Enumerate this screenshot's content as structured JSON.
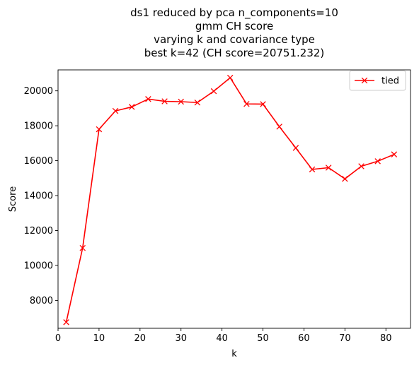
{
  "chart_data": {
    "type": "line",
    "title_lines": [
      "ds1 reduced by pca n_components=10",
      "gmm CH score",
      "varying k and covariance type",
      "best k=42 (CH score=20751.232)"
    ],
    "xlabel": "k",
    "ylabel": "Score",
    "xlim": [
      0,
      86
    ],
    "ylim": [
      6400,
      21200
    ],
    "xticks": [
      0,
      10,
      20,
      30,
      40,
      50,
      60,
      70,
      80
    ],
    "yticks": [
      8000,
      10000,
      12000,
      14000,
      16000,
      18000,
      20000
    ],
    "legend_position": "top-right",
    "series": [
      {
        "name": "tied",
        "color": "#ff0000",
        "marker": "x",
        "x": [
          2,
          6,
          10,
          14,
          18,
          22,
          26,
          30,
          34,
          38,
          42,
          46,
          50,
          54,
          58,
          62,
          66,
          70,
          74,
          78,
          82
        ],
        "y": [
          6750,
          11000,
          17800,
          18850,
          19080,
          19530,
          19400,
          19380,
          19330,
          19980,
          20751.232,
          19250,
          19240,
          17950,
          16730,
          15500,
          15600,
          14960,
          15680,
          15970,
          16360
        ]
      }
    ]
  }
}
